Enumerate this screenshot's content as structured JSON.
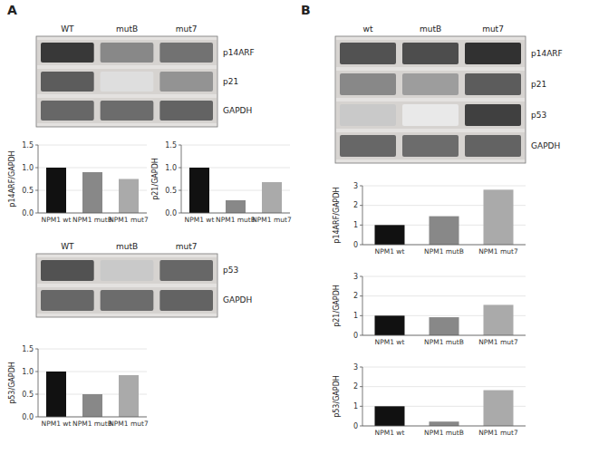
{
  "chart_data": [
    {
      "type": "blot",
      "title": "A",
      "categories": [
        "WT",
        "mutB",
        "mut7"
      ],
      "series": [
        {
          "name": "p14ARF",
          "values": [
            0.92,
            0.55,
            0.65
          ]
        },
        {
          "name": "p21",
          "values": [
            0.75,
            0.15,
            0.5
          ]
        },
        {
          "name": "GAPDH",
          "values": [
            0.7,
            0.68,
            0.72
          ]
        }
      ]
    },
    {
      "type": "bar",
      "categories": [
        "NPM1 wt",
        "NPM1 mutB",
        "NPM1 mut7"
      ],
      "values": [
        1.0,
        0.9,
        0.75
      ],
      "colors": [
        "#111111",
        "#888888",
        "#aaaaaa"
      ],
      "ylabel": "p14ARF/GAPDH",
      "ylim": [
        0,
        1.5
      ],
      "yticks": [
        {
          "value": 0,
          "label": "0.0"
        },
        0.5,
        {
          "value": 1,
          "label": "1.0"
        },
        1.5
      ]
    },
    {
      "type": "bar",
      "categories": [
        "NPM1 wt",
        "NPM1 mutB",
        "NPM1 mut7"
      ],
      "values": [
        1.0,
        0.28,
        0.68
      ],
      "colors": [
        "#111111",
        "#888888",
        "#aaaaaa"
      ],
      "ylabel": "p21/GAPDH",
      "ylim": [
        0,
        1.5
      ],
      "yticks": [
        {
          "value": 0,
          "label": "0.0"
        },
        0.5,
        {
          "value": 1,
          "label": "1.0"
        },
        1.5
      ]
    },
    {
      "type": "blot",
      "categories": [
        "WT",
        "mutB",
        "mut7"
      ],
      "series": [
        {
          "name": "p53",
          "values": [
            0.8,
            0.25,
            0.7
          ]
        },
        {
          "name": "GAPDH",
          "values": [
            0.7,
            0.68,
            0.72
          ]
        }
      ]
    },
    {
      "type": "bar",
      "categories": [
        "NPM1 wt",
        "NPM1 mutB",
        "NPM1 mut7"
      ],
      "values": [
        1.0,
        0.5,
        0.92
      ],
      "colors": [
        "#111111",
        "#888888",
        "#aaaaaa"
      ],
      "ylabel": "p53/GAPDH",
      "ylim": [
        0,
        1.5
      ],
      "yticks": [
        {
          "value": 0,
          "label": "0.0"
        },
        0.5,
        {
          "value": 1,
          "label": "1.0"
        },
        1.5
      ]
    },
    {
      "type": "blot",
      "title": "B",
      "categories": [
        "wt",
        "mutB",
        "mut7"
      ],
      "series": [
        {
          "name": "p14ARF",
          "values": [
            0.8,
            0.82,
            0.95
          ]
        },
        {
          "name": "p21",
          "values": [
            0.55,
            0.45,
            0.75
          ]
        },
        {
          "name": "p53",
          "values": [
            0.25,
            0.1,
            0.88
          ]
        },
        {
          "name": "GAPDH",
          "values": [
            0.7,
            0.68,
            0.72
          ]
        }
      ]
    },
    {
      "type": "bar",
      "categories": [
        "NPM1 wt",
        "NPM1 mutB",
        "NPM1 mut7"
      ],
      "values": [
        1.0,
        1.45,
        2.8
      ],
      "colors": [
        "#111111",
        "#888888",
        "#aaaaaa"
      ],
      "ylabel": "p14ARF/GAPDH",
      "ylim": [
        0,
        3
      ],
      "yticks": [
        0,
        1,
        2,
        3
      ]
    },
    {
      "type": "bar",
      "categories": [
        "NPM1 wt",
        "NPM1 mutB",
        "NPM1 mut7"
      ],
      "values": [
        1.0,
        0.92,
        1.55
      ],
      "colors": [
        "#111111",
        "#888888",
        "#aaaaaa"
      ],
      "ylabel": "p21/GAPDH",
      "ylim": [
        0,
        3
      ],
      "yticks": [
        0,
        1,
        2,
        3
      ]
    },
    {
      "type": "bar",
      "categories": [
        "NPM1 wt",
        "NPM1 mutB",
        "NPM1 mut7"
      ],
      "values": [
        1.0,
        0.22,
        1.82
      ],
      "colors": [
        "#111111",
        "#888888",
        "#aaaaaa"
      ],
      "ylabel": "p53/GAPDH",
      "ylim": [
        0,
        3
      ],
      "yticks": [
        0,
        1,
        2,
        3
      ]
    }
  ]
}
